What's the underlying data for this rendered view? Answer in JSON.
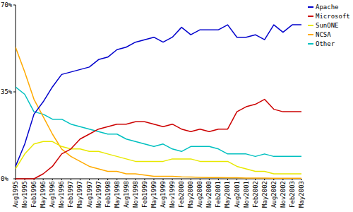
{
  "chart_data": {
    "type": "line",
    "categories": [
      "Aug1995",
      "Nov1995",
      "Feb1996",
      "May1996",
      "Aug1996",
      "Nov1996",
      "Feb1997",
      "May1997",
      "Aug1997",
      "Nov1997",
      "Feb1998",
      "May1998",
      "Aug1998",
      "Nov1998",
      "Feb1999",
      "May1999",
      "Aug1999",
      "Nov1999",
      "Feb2000",
      "May2000",
      "Aug2000",
      "Nov2000",
      "Feb2001",
      "May2001",
      "Aug2001",
      "Nov2001",
      "Feb2002",
      "May2002",
      "Aug2002",
      "Nov2002",
      "Feb2003",
      "May2003"
    ],
    "series": [
      {
        "name": "Apache",
        "color": "#0000cc",
        "values": [
          5,
          14,
          26,
          31,
          37,
          42,
          43,
          44,
          45,
          48,
          49,
          52,
          53,
          55,
          56,
          57,
          55,
          57,
          61,
          58,
          60,
          60,
          60,
          62,
          57,
          57,
          58,
          56,
          62,
          59,
          62,
          62
        ]
      },
      {
        "name": "Microsoft",
        "color": "#cc0000",
        "values": [
          0,
          0,
          0,
          2,
          5,
          10,
          12,
          16,
          18,
          20,
          21,
          22,
          22,
          23,
          23,
          22,
          21,
          22,
          20,
          19,
          20,
          19,
          20,
          20,
          27,
          29,
          30,
          32,
          28,
          27,
          27,
          27
        ]
      },
      {
        "name": "SunONE",
        "color": "#e8e800",
        "values": [
          4,
          10,
          14,
          15,
          15,
          13,
          12,
          12,
          11,
          11,
          10,
          9,
          8,
          7,
          7,
          7,
          7,
          8,
          8,
          8,
          7,
          7,
          7,
          7,
          5,
          4,
          3,
          3,
          2,
          2,
          2,
          2
        ]
      },
      {
        "name": "NCSA",
        "color": "#ffaa00",
        "values": [
          53,
          43,
          32,
          25,
          18,
          12,
          9,
          7,
          5,
          4,
          3,
          3,
          2,
          2,
          1.5,
          1,
          1,
          1,
          0.8,
          0.7,
          0.6,
          0.5,
          0.5,
          0.4,
          0.4,
          0.3,
          0.3,
          0.3,
          0.2,
          0.2,
          0.2,
          0.2
        ]
      },
      {
        "name": "Other",
        "color": "#00c0c0",
        "values": [
          37,
          34,
          27,
          26,
          24,
          24,
          22,
          21,
          20,
          19,
          18,
          18,
          16,
          15,
          14,
          13,
          14,
          12,
          11,
          13,
          13,
          13,
          12,
          10,
          10,
          10,
          9,
          10,
          9,
          9,
          9,
          9
        ]
      }
    ],
    "ylim": [
      0,
      70
    ],
    "yticks": [
      {
        "value": 0,
        "label": "0%"
      },
      {
        "value": 35,
        "label": "35%"
      },
      {
        "value": 70,
        "label": "70%"
      }
    ],
    "grid": false,
    "legend": "top-right"
  }
}
